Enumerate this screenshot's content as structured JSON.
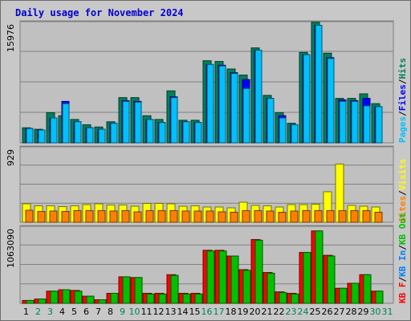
{
  "chart_data": {
    "type": "bar",
    "title": "Daily usage for November 2024",
    "categories": [
      "1",
      "2",
      "3",
      "4",
      "5",
      "6",
      "7",
      "8",
      "9",
      "10",
      "11",
      "12",
      "13",
      "14",
      "15",
      "16",
      "17",
      "18",
      "19",
      "20",
      "21",
      "22",
      "23",
      "24",
      "25",
      "26",
      "27",
      "28",
      "29",
      "30",
      "31"
    ],
    "weekend_days": [
      "2",
      "3",
      "9",
      "10",
      "16",
      "17",
      "23",
      "24",
      "30",
      "31"
    ],
    "colors": {
      "hits": "#00805c",
      "files": "#0000ff",
      "pages": "#00c0ff",
      "visits": "#ffff00",
      "sites": "#ff8000",
      "kbin": "#0080ff",
      "kbout": "#00c000",
      "kbf": "#ff0000",
      "weekday_label": "#000000",
      "weekend_label": "#00805c",
      "plot_bg": "#c0c0c0"
    },
    "panels": [
      {
        "id": "top",
        "ymax_label": "15976",
        "ylim": [
          0,
          15976
        ],
        "legend": [
          {
            "text": "Pages",
            "color": "#00c0ff"
          },
          {
            "text": "/",
            "color": "#000000"
          },
          {
            "text": "Files",
            "color": "#0000ff"
          },
          {
            "text": "/",
            "color": "#000000"
          },
          {
            "text": "Hits",
            "color": "#00805c"
          }
        ],
        "series": [
          {
            "name": "Hits",
            "color": "#00805c",
            "values": [
              2000,
              1800,
              4000,
              3600,
              3100,
              2400,
              2100,
              2800,
              6000,
              6000,
              3600,
              3100,
              6900,
              3000,
              3000,
              10900,
              10800,
              9800,
              9000,
              12600,
              6300,
              4000,
              2600,
              12000,
              16000,
              11900,
              5900,
              5900,
              6500,
              5200,
              0
            ]
          },
          {
            "name": "Files",
            "color": "#0000ff",
            "values": [
              1900,
              1700,
              3300,
              5500,
              2800,
              2000,
              1800,
              2600,
              5600,
              5500,
              3100,
              2700,
              6100,
              2800,
              2700,
              10400,
              10300,
              9300,
              8400,
              12300,
              5900,
              3600,
              2400,
              11700,
              15600,
              11300,
              5700,
              5600,
              5900,
              4800,
              0
            ]
          },
          {
            "name": "Pages",
            "color": "#00c0ff",
            "values": [
              1900,
              1700,
              3300,
              5200,
              2800,
              2000,
              1800,
              2600,
              5500,
              5400,
              3100,
              2700,
              6000,
              2800,
              2700,
              10400,
              10200,
              9200,
              7200,
              12300,
              5900,
              3300,
              2400,
              11700,
              15600,
              11200,
              5500,
              5500,
              4900,
              4800,
              0
            ]
          }
        ]
      },
      {
        "id": "mid",
        "ymax_label": "929",
        "ylim": [
          0,
          929
        ],
        "legend": [
          {
            "text": "Sites",
            "color": "#ff8000"
          },
          {
            "text": "/",
            "color": "#000000"
          },
          {
            "text": "Visits",
            "color": "#ffff00"
          }
        ],
        "series": [
          {
            "name": "Visits",
            "color": "#ffff00",
            "values": [
              230,
              205,
              205,
              195,
              205,
              220,
              230,
              215,
              215,
              200,
              235,
              235,
              230,
              200,
              205,
              190,
              190,
              180,
              250,
              210,
              205,
              190,
              220,
              220,
              225,
              380,
              725,
              210,
              200,
              190,
              0
            ]
          },
          {
            "name": "Sites",
            "color": "#ff8000",
            "values": [
              150,
              135,
              140,
              135,
              145,
              145,
              145,
              140,
              145,
              130,
              145,
              145,
              145,
              140,
              140,
              140,
              130,
              125,
              145,
              145,
              140,
              125,
              140,
              145,
              145,
              145,
              145,
              145,
              145,
              125,
              0
            ]
          }
        ]
      },
      {
        "id": "bot",
        "ymax_label": "1063090",
        "ylim": [
          0,
          1063090
        ],
        "legend": [
          {
            "text": "KB F",
            "color": "#ff0000"
          },
          {
            "text": "/",
            "color": "#000000"
          },
          {
            "text": "KB In",
            "color": "#0080ff"
          },
          {
            "text": "/",
            "color": "#000000"
          },
          {
            "text": "KB Out",
            "color": "#00c000"
          }
        ],
        "series": [
          {
            "name": "KB F",
            "color": "#ff0000",
            "values": [
              40000,
              60000,
              170000,
              190000,
              180000,
              100000,
              50000,
              140000,
              370000,
              360000,
              140000,
              140000,
              400000,
              140000,
              140000,
              740000,
              740000,
              660000,
              470000,
              890000,
              430000,
              160000,
              140000,
              710000,
              1010000,
              670000,
              210000,
              280000,
              400000,
              170000,
              0
            ]
          },
          {
            "name": "KB In",
            "color": "#0080ff",
            "values": [
              0,
              0,
              0,
              0,
              0,
              0,
              0,
              0,
              0,
              0,
              0,
              0,
              0,
              0,
              0,
              0,
              0,
              0,
              0,
              0,
              0,
              0,
              0,
              0,
              0,
              0,
              0,
              0,
              0,
              0,
              0
            ]
          },
          {
            "name": "KB Out",
            "color": "#00c000",
            "values": [
              40000,
              60000,
              170000,
              190000,
              170000,
              100000,
              50000,
              140000,
              370000,
              360000,
              130000,
              130000,
              390000,
              130000,
              130000,
              730000,
              730000,
              660000,
              460000,
              880000,
              420000,
              150000,
              130000,
              710000,
              1010000,
              660000,
              210000,
              280000,
              400000,
              170000,
              0
            ]
          }
        ]
      }
    ]
  }
}
